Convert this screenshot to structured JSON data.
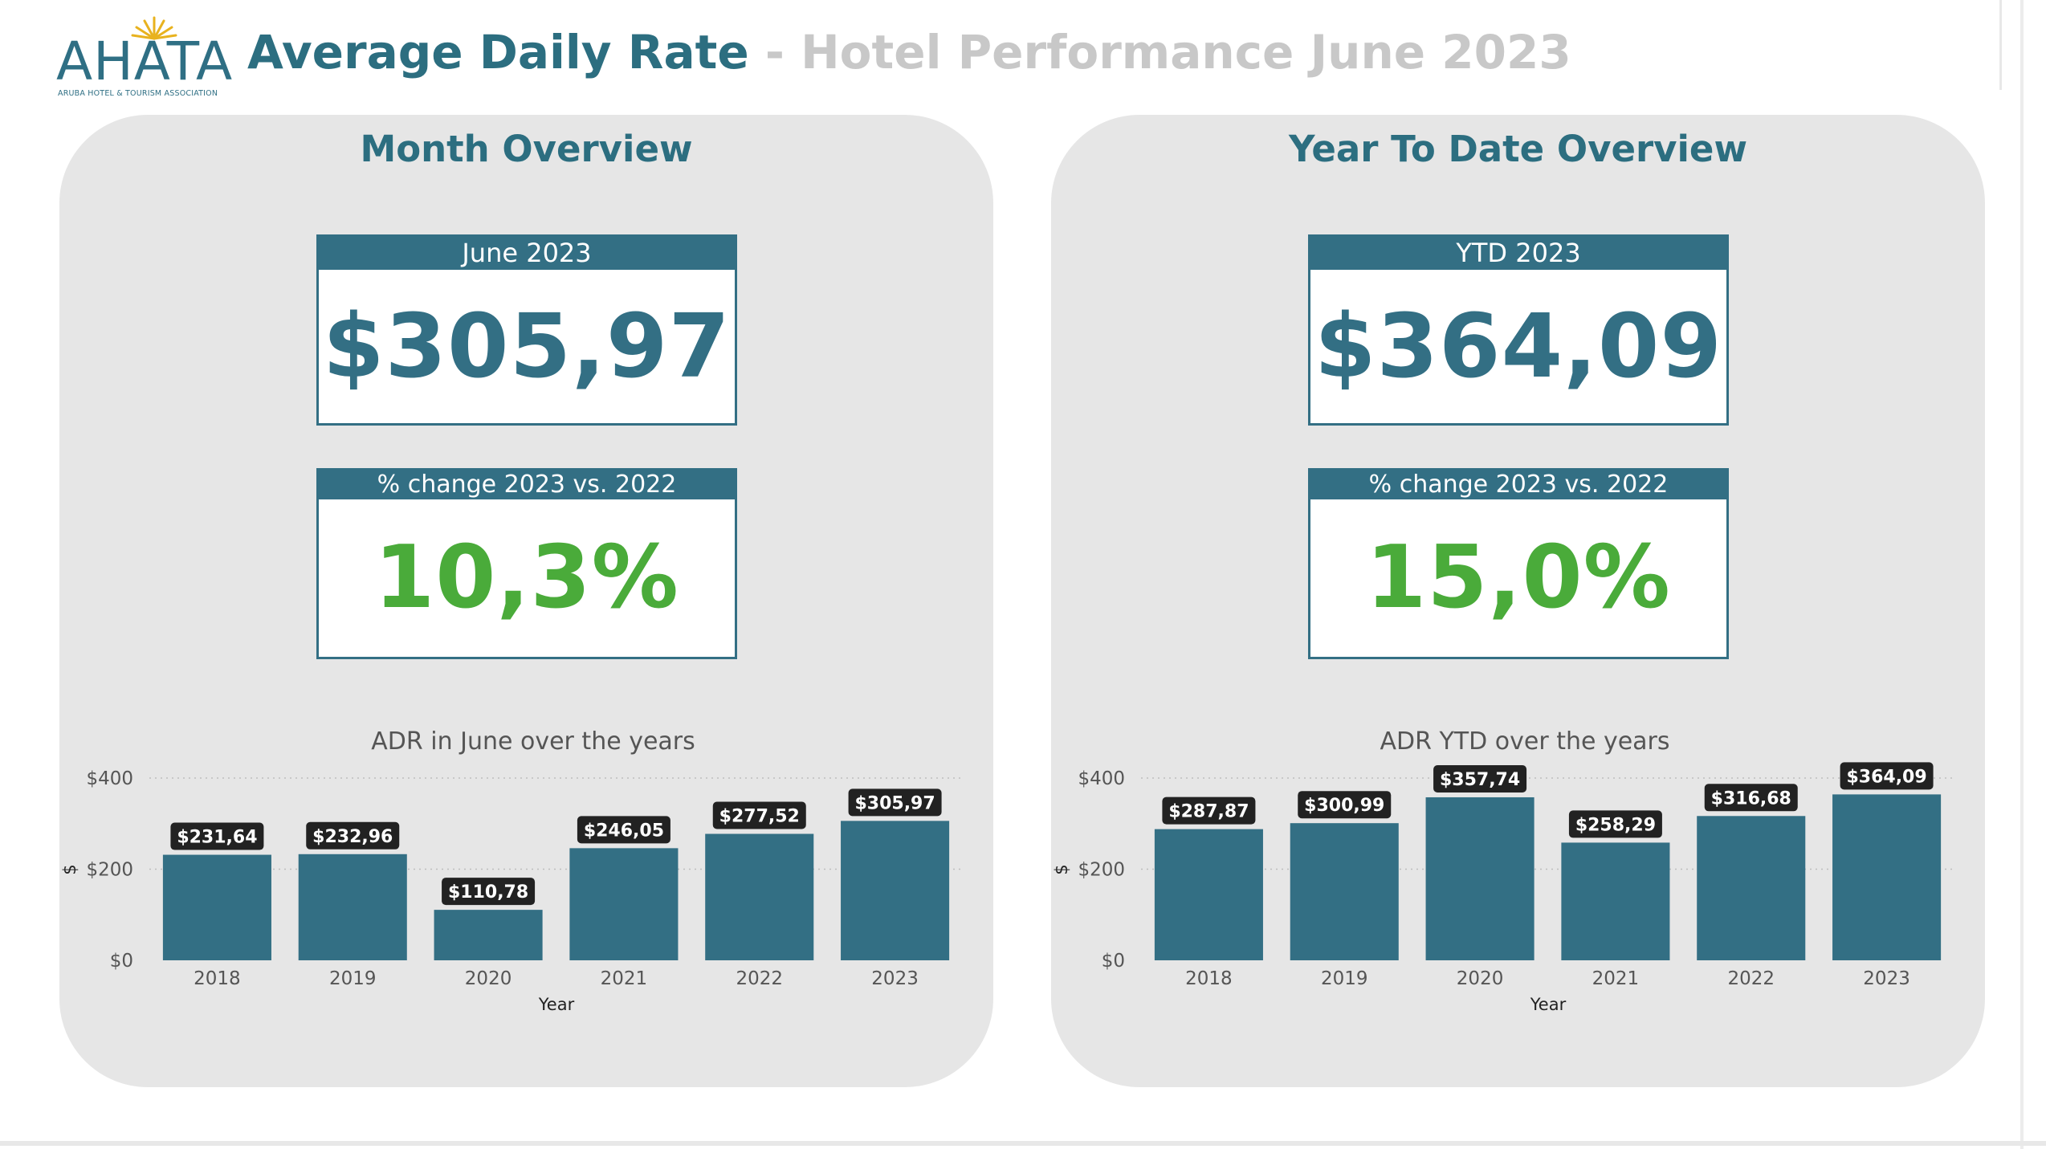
{
  "header": {
    "logo_text": "AHATA",
    "logo_subtext": "ARUBA HOTEL & TOURISM ASSOCIATION",
    "title": "Average Daily Rate",
    "separator": " - ",
    "subtitle": "Hotel Performance June 2023"
  },
  "colors": {
    "brand": "#2c6e80",
    "bar": "#336f84",
    "positive": "#4aab3a",
    "panel": "#e6e6e6",
    "label_bg": "#222222"
  },
  "month": {
    "title": "Month Overview",
    "kpi": {
      "header": "June 2023",
      "value": "$305,97"
    },
    "change": {
      "header": "% change 2023 vs. 2022",
      "value": "10,3%"
    }
  },
  "ytd": {
    "title": "Year To Date Overview",
    "kpi": {
      "header": "YTD 2023",
      "value": "$364,09"
    },
    "change": {
      "header": "% change 2023 vs. 2022",
      "value": "15,0%"
    }
  },
  "chart_data": [
    {
      "type": "bar",
      "title": "ADR in June over the years",
      "xlabel": "Year",
      "ylabel": "$",
      "categories": [
        "2018",
        "2019",
        "2020",
        "2021",
        "2022",
        "2023"
      ],
      "values": [
        231.64,
        232.96,
        110.78,
        246.05,
        277.52,
        305.97
      ],
      "data_labels": [
        "$231,64",
        "$232,96",
        "$110,78",
        "$246,05",
        "$277,52",
        "$305,97"
      ],
      "ylim": [
        0,
        400
      ],
      "yticks": [
        0,
        200,
        400
      ],
      "ytick_labels": [
        "$0",
        "$200",
        "$400"
      ],
      "grid": true
    },
    {
      "type": "bar",
      "title": "ADR YTD over the years",
      "xlabel": "Year",
      "ylabel": "$",
      "categories": [
        "2018",
        "2019",
        "2020",
        "2021",
        "2022",
        "2023"
      ],
      "values": [
        287.87,
        300.99,
        357.74,
        258.29,
        316.68,
        364.09
      ],
      "data_labels": [
        "$287,87",
        "$300,99",
        "$357,74",
        "$258,29",
        "$316,68",
        "$364,09"
      ],
      "ylim": [
        0,
        400
      ],
      "yticks": [
        0,
        200,
        400
      ],
      "ytick_labels": [
        "$0",
        "$200",
        "$400"
      ],
      "grid": true
    }
  ]
}
